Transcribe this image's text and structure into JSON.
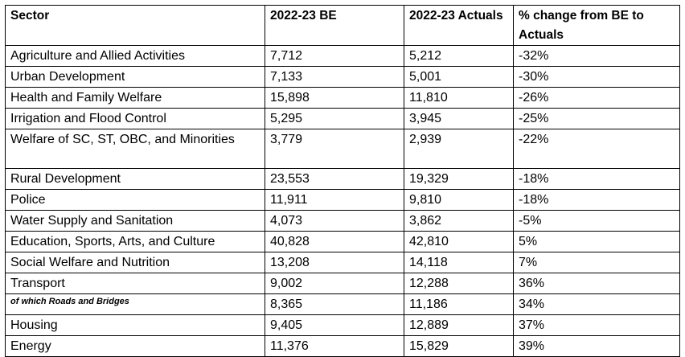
{
  "table": {
    "headers": [
      "Sector",
      "2022-23 BE",
      "2022-23 Actuals",
      "% change from BE to Actuals"
    ],
    "rows": [
      {
        "sector": "Agriculture and Allied Activities",
        "be": "7,712",
        "actuals": "5,212",
        "change": "-32%"
      },
      {
        "sector": "Urban Development",
        "be": "7,133",
        "actuals": "5,001",
        "change": "-30%"
      },
      {
        "sector": "Health and Family Welfare",
        "be": "15,898",
        "actuals": "11,810",
        "change": "-26%"
      },
      {
        "sector": "Irrigation and Flood Control",
        "be": "5,295",
        "actuals": "3,945",
        "change": "-25%"
      },
      {
        "sector": "Welfare of SC, ST, OBC, and Minorities",
        "be": "3,779",
        "actuals": "2,939",
        "change": "-22%"
      },
      {
        "sector": "Rural Development",
        "be": "23,553",
        "actuals": "19,329",
        "change": "-18%"
      },
      {
        "sector": "Police",
        "be": "11,911",
        "actuals": "9,810",
        "change": "-18%"
      },
      {
        "sector": "Water Supply and Sanitation",
        "be": "4,073",
        "actuals": "3,862",
        "change": "-5%"
      },
      {
        "sector": "Education, Sports, Arts, and Culture",
        "be": "40,828",
        "actuals": "42,810",
        "change": "5%"
      },
      {
        "sector": "Social Welfare and Nutrition",
        "be": "13,208",
        "actuals": "14,118",
        "change": "7%"
      },
      {
        "sector": "Transport",
        "be": "9,002",
        "actuals": "12,288",
        "change": "36%"
      },
      {
        "sector": "of which Roads and Bridges",
        "be": "8,365",
        "actuals": "11,186",
        "change": "34%"
      },
      {
        "sector": "Housing",
        "be": "9,405",
        "actuals": "12,889",
        "change": "37%"
      },
      {
        "sector": "Energy",
        "be": "11,376",
        "actuals": "15,829",
        "change": "39%"
      }
    ]
  }
}
